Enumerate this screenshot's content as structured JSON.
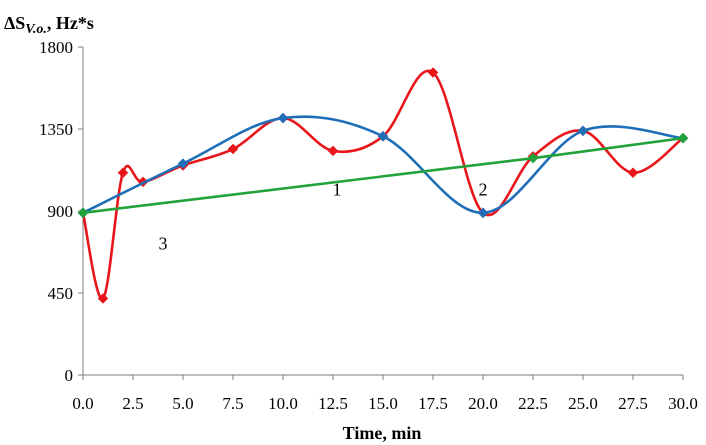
{
  "chart_data": {
    "type": "line",
    "ylabel_prefix": "ΔS",
    "ylabel_sub": "V.o.",
    "ylabel_suffix": ", Hz*s",
    "xlabel": "Time, min",
    "xlim": [
      0,
      30
    ],
    "ylim": [
      0,
      1800
    ],
    "xticks": [
      "0.0",
      "2.5",
      "5.0",
      "7.5",
      "10.0",
      "12.5",
      "15.0",
      "17.5",
      "20.0",
      "22.5",
      "25.0",
      "27.5",
      "30.0"
    ],
    "yticks": [
      "0",
      "450",
      "900",
      "1350",
      "1800"
    ],
    "grid": false,
    "legend": "none",
    "series": [
      {
        "label": "3",
        "color": "#e8161b",
        "marker": "diamond",
        "x": [
          0,
          1,
          2,
          3,
          5,
          7.5,
          10,
          12.5,
          15,
          17.5,
          20,
          22.5,
          25,
          27.5,
          30
        ],
        "y": [
          890,
          420,
          1110,
          1060,
          1150,
          1240,
          1410,
          1230,
          1310,
          1660,
          890,
          1200,
          1340,
          1110,
          1300
        ]
      },
      {
        "label": "2",
        "color": "#1f6fb8",
        "marker": "diamond",
        "x": [
          0,
          5,
          10,
          15,
          20,
          25,
          30
        ],
        "y": [
          890,
          1160,
          1410,
          1310,
          890,
          1340,
          1300
        ]
      },
      {
        "label": "1",
        "color": "#22a23a",
        "marker": "diamond",
        "x": [
          0,
          22.5,
          30
        ],
        "y": [
          890,
          1190,
          1300
        ]
      }
    ],
    "annotations": [
      {
        "text": "1",
        "x": 12.7,
        "y": 985
      },
      {
        "text": "2",
        "x": 20.0,
        "y": 985
      },
      {
        "text": "3",
        "x": 4.0,
        "y": 690
      }
    ]
  }
}
